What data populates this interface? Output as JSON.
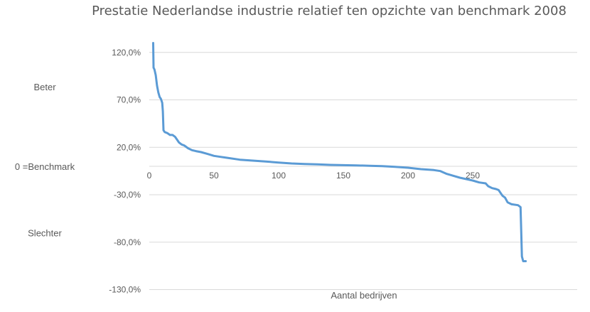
{
  "chart_data": {
    "type": "line",
    "title": "Prestatie Nederlandse industrie relatief ten opzichte van benchmark 2008",
    "xlabel": "Aantal bedrijven",
    "ylabel": "",
    "xlim": [
      0,
      330
    ],
    "ylim": [
      -130,
      140
    ],
    "x_ticks": [
      0,
      50,
      100,
      150,
      200,
      250
    ],
    "y_ticks": [
      120,
      70,
      20,
      -30,
      -80,
      -130
    ],
    "y_tick_labels": [
      "120,0%",
      "70,0%",
      "20,0%",
      "-30,0%",
      "-80,0%",
      "-130,0%"
    ],
    "side_labels": [
      {
        "text": "Beter",
        "value": 84
      },
      {
        "text": "0 =Benchmark",
        "value": 0
      },
      {
        "text": "Slechter",
        "value": -70
      }
    ],
    "grid": true,
    "legend": "none",
    "series_color": "#5b9bd5",
    "series": [
      {
        "x": [
          3,
          3.3,
          4,
          5,
          6,
          7,
          8,
          9,
          10,
          10.5,
          11,
          12,
          14,
          16,
          18,
          20,
          23,
          25,
          27,
          30,
          33,
          36,
          40,
          45,
          50,
          55,
          60,
          70,
          80,
          90,
          100,
          110,
          120,
          130,
          140,
          150,
          160,
          170,
          180,
          190,
          200,
          210,
          220,
          225,
          230,
          240,
          250,
          255,
          260,
          262,
          265,
          268,
          270,
          272,
          273,
          275,
          277,
          280,
          285,
          287,
          287.5,
          288,
          289,
          291
        ],
        "y": [
          130,
          104,
          102,
          96,
          85,
          78,
          73,
          71,
          67,
          58,
          38,
          36,
          35,
          33,
          33,
          31,
          25,
          23,
          22,
          19,
          17,
          16,
          15,
          13,
          11,
          10,
          9,
          7,
          6,
          5,
          4,
          3,
          2.5,
          2,
          1.5,
          1.2,
          1,
          0.5,
          0.2,
          -0.5,
          -1.5,
          -3,
          -4,
          -5,
          -8,
          -12,
          -15,
          -17,
          -18,
          -21,
          -23,
          -24,
          -25,
          -29,
          -31,
          -33,
          -38,
          -40,
          -41,
          -43,
          -70,
          -95,
          -100,
          -100
        ]
      }
    ]
  }
}
